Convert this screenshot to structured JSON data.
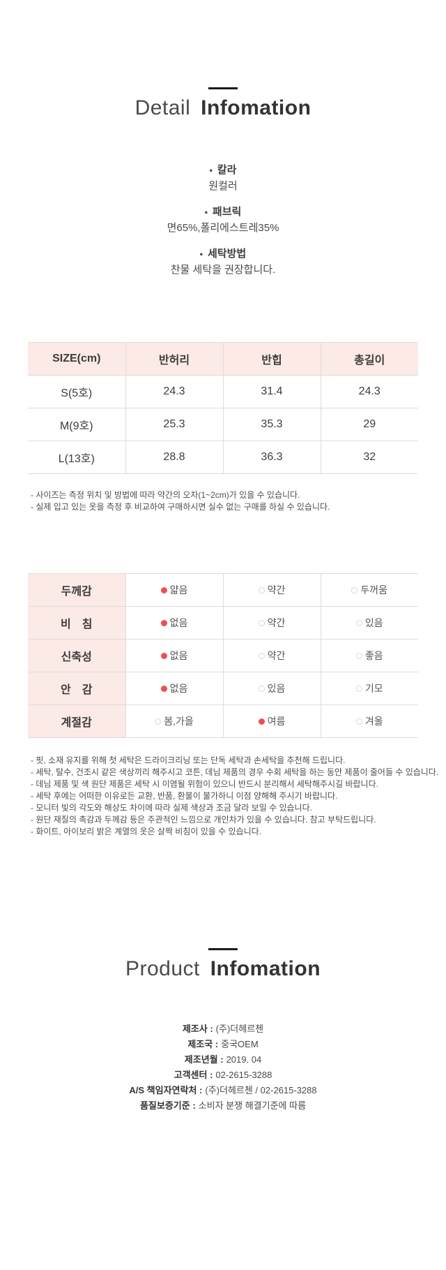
{
  "bullet": "•",
  "detail_section": {
    "title_light": "Detail",
    "title_bold": "Infomation",
    "attributes": [
      {
        "label": "칼라",
        "value": "원컬러"
      },
      {
        "label": "패브릭",
        "value": "면65%,폴리에스트레35%"
      },
      {
        "label": "세탁방법",
        "value": "찬물 세탁을 권장합니다."
      }
    ]
  },
  "size_table": {
    "headers": [
      "SIZE(cm)",
      "반허리",
      "반힙",
      "총길이"
    ],
    "rows": [
      {
        "size": "S(5호)",
        "values": [
          "24.3",
          "31.4",
          "24.3"
        ]
      },
      {
        "size": "M(9호)",
        "values": [
          "25.3",
          "35.3",
          "29"
        ]
      },
      {
        "size": "L(13호)",
        "values": [
          "28.8",
          "36.3",
          "32"
        ]
      }
    ],
    "notes": [
      "- 사이즈는 측정 위치 및 방법에 따라 약간의 오차(1~2cm)가 있을 수 있습니다.",
      "- 실제 입고 있는 옷을 측정 후 비교하여 구매하시면 실수 없는 구매를 하실 수 있습니다."
    ]
  },
  "fabric_table": {
    "rows": [
      {
        "label": "두께감",
        "options": [
          "얇음",
          "약간",
          "두꺼움"
        ],
        "selected": 0
      },
      {
        "label": "비　침",
        "options": [
          "없음",
          "약간",
          "있음"
        ],
        "selected": 0
      },
      {
        "label": "신축성",
        "options": [
          "없음",
          "약간",
          "좋음"
        ],
        "selected": 0
      },
      {
        "label": "안　감",
        "options": [
          "없음",
          "있음",
          "기모"
        ],
        "selected": 0
      },
      {
        "label": "계절감",
        "options": [
          "봄,가을",
          "여름",
          "겨울"
        ],
        "selected": 1
      }
    ],
    "notes": [
      "- 핏, 소재 유지를 위해 첫 세탁은 드라이크리닝 또는 단독 세탁과 손세탁을 추천해 드립니다.",
      "- 세탁, 탈수, 건조시 같은 색상끼리 해주시고 코튼, 데님 제품의 경우 수회 세탁을 하는 동안 제품이 줄어들 수 있습니다.",
      "- 데님 제품 및 색 원단 제품은 세탁 시 이염될 위험이 있으니 반드시 분리해서 세탁해주시길 바랍니다.",
      "- 세탁 후에는 어떠한 이유로든 교환, 반품, 환불이 불가하니 이점 양해해 주시기 바랍니다.",
      "- 모니터 빛의 각도와 해상도 차이에 따라 실제 색상과 조금 달라 보일 수 있습니다.",
      "- 원단 재질의 촉감과 두께감 등은 주관적인 느낌으로 개인차가 있을 수 있습니다. 참고 부탁드립니다.",
      "- 화이트, 아이보리 밝은 계열의 옷은 살짝 비침이 있을 수 있습니다."
    ]
  },
  "product_section": {
    "title_light": "Product",
    "title_bold": "Infomation",
    "info": [
      {
        "label": "제조사 :",
        "value": "(주)더헤르첸"
      },
      {
        "label": "제조국 :",
        "value": "중국OEM"
      },
      {
        "label": "제조년월 :",
        "value": "2019. 04"
      },
      {
        "label": "고객센터 :",
        "value": "02-2615-3288"
      },
      {
        "label": "A/S 책임자연락처 :",
        "value": "(주)더헤르첸 / 02-2615-3288"
      },
      {
        "label": "품질보증기준 :",
        "value": "소비자 분쟁 해결기준에 따름"
      }
    ]
  },
  "colors": {
    "table_header_pink": "#fceae6",
    "selected_radio_red": "#ef4f4f",
    "table_border": "#dcdcdc",
    "heading_text": "#333333"
  }
}
